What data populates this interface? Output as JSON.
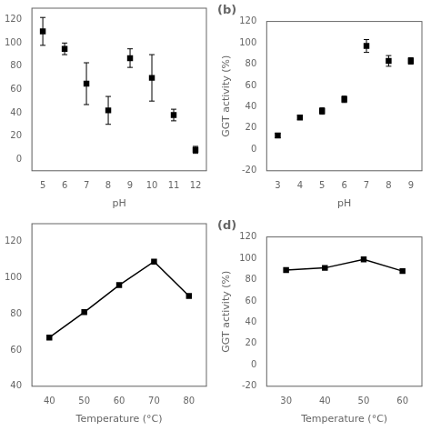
{
  "chart_data": [
    {
      "type": "scatter",
      "x": [
        5,
        6,
        7,
        8,
        9,
        10,
        11,
        12
      ],
      "values": [
        110,
        95,
        65,
        42,
        87,
        70,
        38,
        8
      ],
      "yerr": [
        12,
        5,
        18,
        12,
        8,
        20,
        5,
        3
      ],
      "xlabel": "pH",
      "xlim": [
        4.5,
        12.5
      ],
      "ylim": [
        -10,
        130
      ],
      "xticks": [
        5,
        6,
        7,
        8,
        9,
        10,
        11,
        12
      ],
      "yticks": [
        0,
        20,
        40,
        60,
        80,
        100,
        120
      ],
      "marker": "square",
      "color": "black",
      "grid": false
    },
    {
      "type": "scatter",
      "annotation": "(b)",
      "x": [
        3,
        4,
        5,
        6,
        7,
        8,
        9
      ],
      "values": [
        13,
        30,
        36,
        47,
        97,
        83,
        83
      ],
      "yerr": [
        2,
        2,
        3,
        3,
        6,
        5,
        3
      ],
      "xlabel": "pH",
      "ylabel": "GGT activity (%)",
      "xlim": [
        2.5,
        9.5
      ],
      "ylim": [
        -20,
        120
      ],
      "xticks": [
        3,
        4,
        5,
        6,
        7,
        8,
        9
      ],
      "yticks": [
        -20,
        0,
        20,
        40,
        60,
        80,
        100,
        120
      ],
      "marker": "square",
      "color": "black",
      "grid": false
    },
    {
      "type": "line",
      "x": [
        40,
        50,
        60,
        70,
        80
      ],
      "values": [
        67,
        81,
        96,
        109,
        90
      ],
      "xlabel": "Temperature (°C)",
      "xlim": [
        35,
        85
      ],
      "ylim": [
        40,
        130
      ],
      "xticks": [
        40,
        50,
        60,
        70,
        80
      ],
      "yticks": [
        40,
        60,
        80,
        100,
        120
      ],
      "marker": "square",
      "line_style": "solid",
      "color": "black",
      "grid": false
    },
    {
      "type": "line",
      "annotation": "(d)",
      "x": [
        30,
        40,
        50,
        60
      ],
      "values": [
        89,
        91,
        99,
        88
      ],
      "xlabel": "Temperature (°C)",
      "ylabel": "GGT activity (%)",
      "xlim": [
        25,
        65
      ],
      "ylim": [
        -20,
        120
      ],
      "xticks": [
        30,
        40,
        50,
        60
      ],
      "yticks": [
        -20,
        0,
        20,
        40,
        60,
        80,
        100,
        120
      ],
      "marker": "square",
      "line_style": "solid",
      "color": "black",
      "grid": false
    }
  ]
}
